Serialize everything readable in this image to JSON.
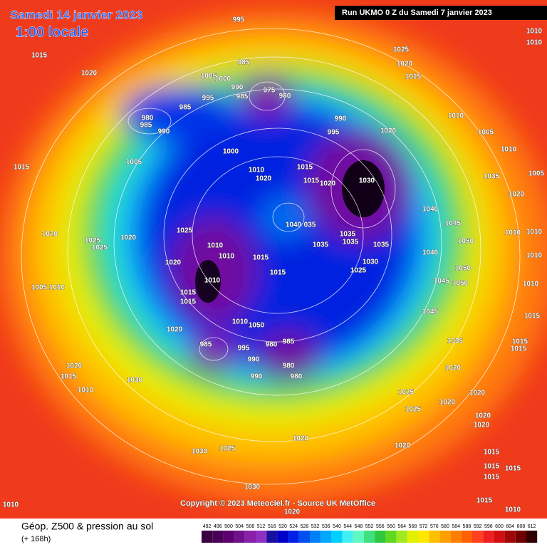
{
  "header": {
    "date": "Samedi 14 janvier 2023",
    "time": "1:00 locale",
    "run": "Run UKMO 0 Z du Samedi 7 janvier 2023"
  },
  "copyright": "Copyright © 2023 Meteociel.fr - Source UK MetOffice",
  "legend": {
    "title": "Géop. Z500 & pression au sol",
    "lead": "(+ 168h)",
    "values": [
      492,
      496,
      500,
      504,
      508,
      512,
      516,
      520,
      524,
      528,
      532,
      536,
      540,
      544,
      548,
      552,
      556,
      560,
      564,
      568,
      572,
      576,
      580,
      584,
      588,
      592,
      596,
      600,
      604,
      608,
      612
    ],
    "colors": [
      "#3a0040",
      "#4b0058",
      "#5c0070",
      "#70108a",
      "#8a20a8",
      "#9030c0",
      "#1a10a0",
      "#0000c8",
      "#0020e8",
      "#0050f0",
      "#0080f8",
      "#00a8ff",
      "#00d0ff",
      "#40f0f0",
      "#60f8c0",
      "#40e080",
      "#30c840",
      "#60d820",
      "#a0e820",
      "#e0f000",
      "#ffe800",
      "#ffc000",
      "#ffa000",
      "#ff8000",
      "#ff6000",
      "#ff4020",
      "#f02020",
      "#d01010",
      "#a00808",
      "#700000",
      "#300000"
    ]
  },
  "pressure_labels": [
    "995",
    "1015",
    "1020",
    "1025",
    "1020",
    "1015",
    "1010",
    "1010",
    "985",
    "1005",
    "1000",
    "990",
    "985",
    "975",
    "980",
    "995",
    "985",
    "980",
    "985",
    "990",
    "990",
    "995",
    "1020",
    "1010",
    "1005",
    "1010",
    "1015",
    "1005",
    "1000",
    "1010",
    "1020",
    "1015",
    "1015",
    "1020",
    "1030",
    "1035",
    "1005",
    "1020",
    "1040",
    "1040",
    "035",
    "1045",
    "1025",
    "1020",
    "1020",
    "1010",
    "1010",
    "1035",
    "1035",
    "1035",
    "1035",
    "1050",
    "1010",
    "1010",
    "1010",
    "1025",
    "1025",
    "1015",
    "1040",
    "1020",
    "1030",
    "1025",
    "1015",
    "1050",
    "1010",
    "1005",
    "1010",
    "1045",
    "1050",
    "1010",
    "1015",
    "1015",
    "1045",
    "1015",
    "1020",
    "1010",
    "1050",
    "1035",
    "1015",
    "1015",
    "985",
    "995",
    "980",
    "985",
    "990",
    "980",
    "1020",
    "1015",
    "990",
    "980",
    "1030",
    "1020",
    "1010",
    "1025",
    "1020",
    "1020",
    "1025",
    "1020",
    "1020",
    "1020",
    "1020",
    "1030",
    "1025",
    "1015",
    "1015",
    "1015",
    "1015",
    "1030",
    "1010",
    "1015",
    "1010",
    "1020"
  ]
}
